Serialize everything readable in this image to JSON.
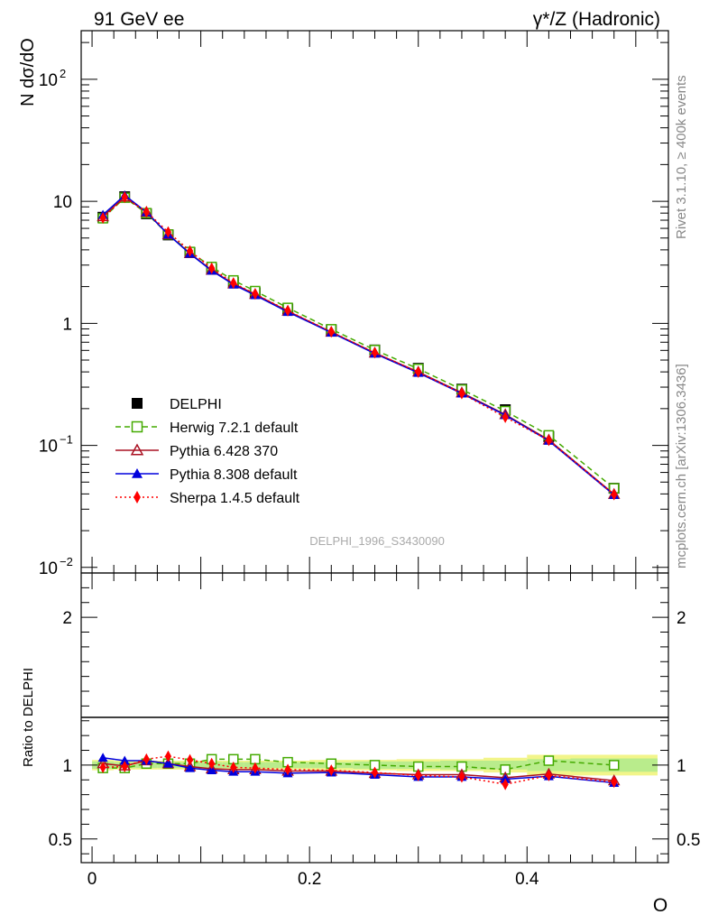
{
  "header": {
    "left_title": "91 GeV ee",
    "right_title": "γ*/Z (Hadronic)"
  },
  "side_labels": {
    "rivet": "Rivet 3.1.10, ≥ 400k events",
    "mcplots": "mcplots.cern.ch [arXiv:1306.3436]"
  },
  "analysis_id": "DELPHI_1996_S3430090",
  "chart_data": [
    {
      "type": "line",
      "yscale": "log",
      "ylabel": "N dσ/dO",
      "xlim": [
        -0.01,
        0.53
      ],
      "ylim": [
        0.009,
        250
      ],
      "ytick_labels": [
        {
          "value": 0.01,
          "label": "10",
          "exp": "−2"
        },
        {
          "value": 0.1,
          "label": "10",
          "exp": "−1"
        },
        {
          "value": 1,
          "label": "1",
          "exp": ""
        },
        {
          "value": 10,
          "label": "10",
          "exp": ""
        },
        {
          "value": 100,
          "label": "10",
          "exp": "2"
        }
      ],
      "x": [
        0.01,
        0.03,
        0.05,
        0.07,
        0.09,
        0.11,
        0.13,
        0.15,
        0.18,
        0.22,
        0.26,
        0.3,
        0.34,
        0.38,
        0.42,
        0.48
      ],
      "series": [
        {
          "name": "DELPHI",
          "color": "#000000",
          "marker": "filled-square",
          "dash": "none",
          "values": [
            7.4,
            10.9,
            7.9,
            5.3,
            3.8,
            2.8,
            2.17,
            1.78,
            1.31,
            0.885,
            0.605,
            0.428,
            0.289,
            0.196,
            0.118,
            0.0445
          ]
        },
        {
          "name": "Herwig 7.2.1 default",
          "color": "#44aa00",
          "marker": "open-square",
          "dash": "6,4",
          "values": [
            7.25,
            10.7,
            8.0,
            5.35,
            3.85,
            2.9,
            2.25,
            1.84,
            1.34,
            0.895,
            0.605,
            0.424,
            0.287,
            0.191,
            0.121,
            0.0445
          ]
        },
        {
          "name": "Pythia 6.428 370",
          "color": "#aa1122",
          "marker": "open-triangle",
          "dash": "none",
          "values": [
            7.5,
            10.85,
            8.15,
            5.35,
            3.75,
            2.73,
            2.11,
            1.73,
            1.26,
            0.848,
            0.572,
            0.4,
            0.27,
            0.179,
            0.111,
            0.0398
          ]
        },
        {
          "name": "Pythia 8.308 default",
          "color": "#0000dd",
          "marker": "filled-triangle",
          "dash": "none",
          "values": [
            7.75,
            11.2,
            8.15,
            5.35,
            3.72,
            2.7,
            2.08,
            1.7,
            1.24,
            0.84,
            0.565,
            0.393,
            0.266,
            0.177,
            0.109,
            0.0392
          ]
        },
        {
          "name": "Sherpa 1.4.5 default",
          "color": "#ff0000",
          "marker": "filled-diamond",
          "dash": "2,3",
          "values": [
            7.3,
            10.8,
            8.2,
            5.6,
            3.92,
            2.83,
            2.14,
            1.74,
            1.27,
            0.852,
            0.575,
            0.398,
            0.266,
            0.17,
            0.11,
            0.0395
          ]
        }
      ]
    },
    {
      "type": "line",
      "yscale": "linear",
      "ylabel": "Ratio to DELPHI",
      "xlabel": "O",
      "xlim": [
        -0.01,
        0.53
      ],
      "ylim": [
        0.34,
        2.3
      ],
      "xtick_labels": [
        {
          "value": 0,
          "label": "0"
        },
        {
          "value": 0.2,
          "label": "0.2"
        },
        {
          "value": 0.4,
          "label": "0.4"
        }
      ],
      "ytick_labels": [
        {
          "value": 0.5,
          "label": "0.5"
        },
        {
          "value": 1,
          "label": "1"
        },
        {
          "value": 2,
          "label": "2"
        }
      ],
      "uncertainty_band": {
        "x_edges": [
          0.0,
          0.02,
          0.04,
          0.06,
          0.08,
          0.1,
          0.12,
          0.14,
          0.16,
          0.2,
          0.24,
          0.28,
          0.32,
          0.36,
          0.4,
          0.44,
          0.52
        ],
        "inner": [
          0.025,
          0.02,
          0.02,
          0.02,
          0.02,
          0.02,
          0.02,
          0.02,
          0.02,
          0.02,
          0.025,
          0.025,
          0.03,
          0.03,
          0.04,
          0.045
        ],
        "outer": [
          0.035,
          0.03,
          0.03,
          0.03,
          0.03,
          0.03,
          0.03,
          0.03,
          0.03,
          0.035,
          0.035,
          0.04,
          0.04,
          0.05,
          0.07,
          0.07
        ]
      },
      "x": [
        0.01,
        0.03,
        0.05,
        0.07,
        0.09,
        0.11,
        0.13,
        0.15,
        0.18,
        0.22,
        0.26,
        0.3,
        0.34,
        0.38,
        0.42,
        0.48
      ],
      "series": [
        {
          "name": "Herwig 7.2.1 default",
          "color": "#44aa00",
          "marker": "open-square",
          "dash": "6,4",
          "values": [
            0.98,
            0.98,
            1.01,
            1.01,
            1.01,
            1.04,
            1.04,
            1.04,
            1.02,
            1.01,
            1.0,
            0.99,
            0.99,
            0.97,
            1.03,
            1.0
          ]
        },
        {
          "name": "Pythia 6.428 370",
          "color": "#aa1122",
          "marker": "open-triangle",
          "dash": "none",
          "values": [
            1.01,
            0.995,
            1.03,
            1.01,
            0.99,
            0.975,
            0.97,
            0.97,
            0.96,
            0.96,
            0.945,
            0.935,
            0.935,
            0.915,
            0.94,
            0.895
          ]
        },
        {
          "name": "Pythia 8.308 default",
          "color": "#0000dd",
          "marker": "filled-triangle",
          "dash": "none",
          "values": [
            1.05,
            1.03,
            1.03,
            1.01,
            0.98,
            0.965,
            0.955,
            0.955,
            0.945,
            0.95,
            0.935,
            0.92,
            0.92,
            0.905,
            0.925,
            0.88
          ]
        },
        {
          "name": "Sherpa 1.4.5 default",
          "color": "#ff0000",
          "marker": "filled-diamond",
          "dash": "2,3",
          "values": [
            0.985,
            0.99,
            1.04,
            1.06,
            1.035,
            1.01,
            0.985,
            0.98,
            0.97,
            0.965,
            0.95,
            0.93,
            0.92,
            0.87,
            0.93,
            0.885
          ]
        }
      ]
    }
  ]
}
